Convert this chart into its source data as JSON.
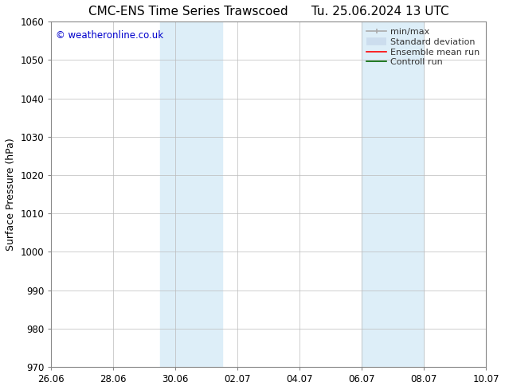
{
  "title_left": "CMC-ENS Time Series Trawscoed",
  "title_right": "Tu. 25.06.2024 13 UTC",
  "ylabel": "Surface Pressure (hPa)",
  "ylim": [
    970,
    1060
  ],
  "yticks": [
    970,
    980,
    990,
    1000,
    1010,
    1020,
    1030,
    1040,
    1050,
    1060
  ],
  "xtick_labels": [
    "26.06",
    "28.06",
    "30.06",
    "02.07",
    "04.07",
    "06.07",
    "08.07",
    "10.07"
  ],
  "xtick_positions_days": [
    0,
    2,
    4,
    6,
    8,
    10,
    12,
    14
  ],
  "shaded_bands": [
    {
      "x_start_days": 3.5,
      "x_end_days": 5.5
    },
    {
      "x_start_days": 10.0,
      "x_end_days": 12.0
    }
  ],
  "shade_color": "#ddeef8",
  "watermark": "© weatheronline.co.uk",
  "watermark_color": "#0000cc",
  "background_color": "#ffffff",
  "grid_color": "#bbbbbb",
  "spine_color": "#888888",
  "title_fontsize": 11,
  "ylabel_fontsize": 9,
  "tick_fontsize": 8.5,
  "watermark_fontsize": 8.5,
  "legend_fontsize": 8,
  "legend_minmax_color": "#aaaaaa",
  "legend_std_color": "#ccddee",
  "legend_ens_color": "#ff0000",
  "legend_ctrl_color": "#006600"
}
